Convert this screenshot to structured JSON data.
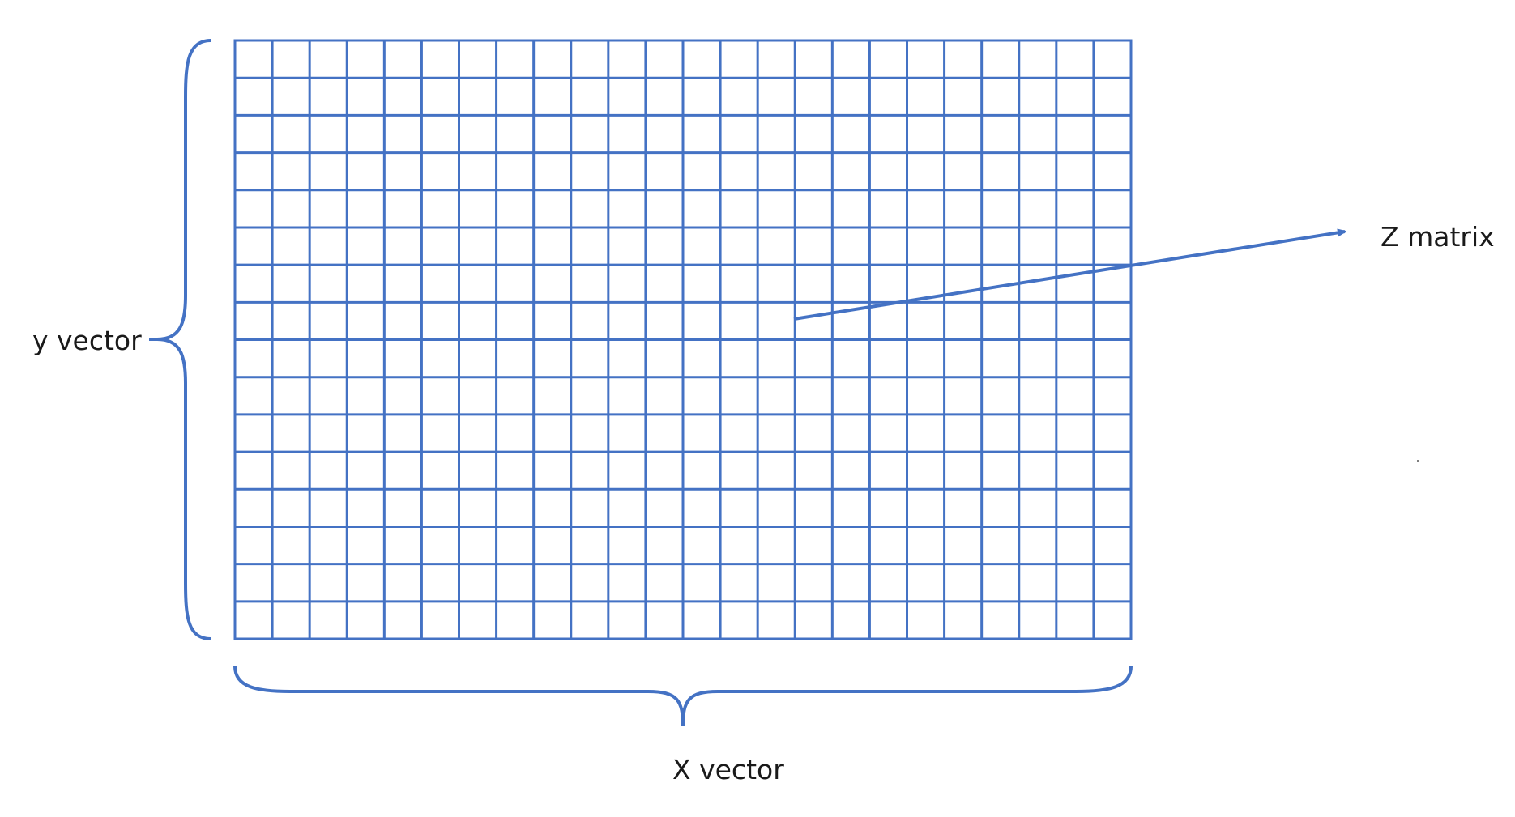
{
  "colors": {
    "accent": "#4472C4",
    "text": "#1a1a1a",
    "background": "#ffffff"
  },
  "grid": {
    "columns": 24,
    "rows": 16
  },
  "labels": {
    "y_label": "y vector",
    "x_label": "X  vector",
    "z_label": "Z matrix"
  }
}
